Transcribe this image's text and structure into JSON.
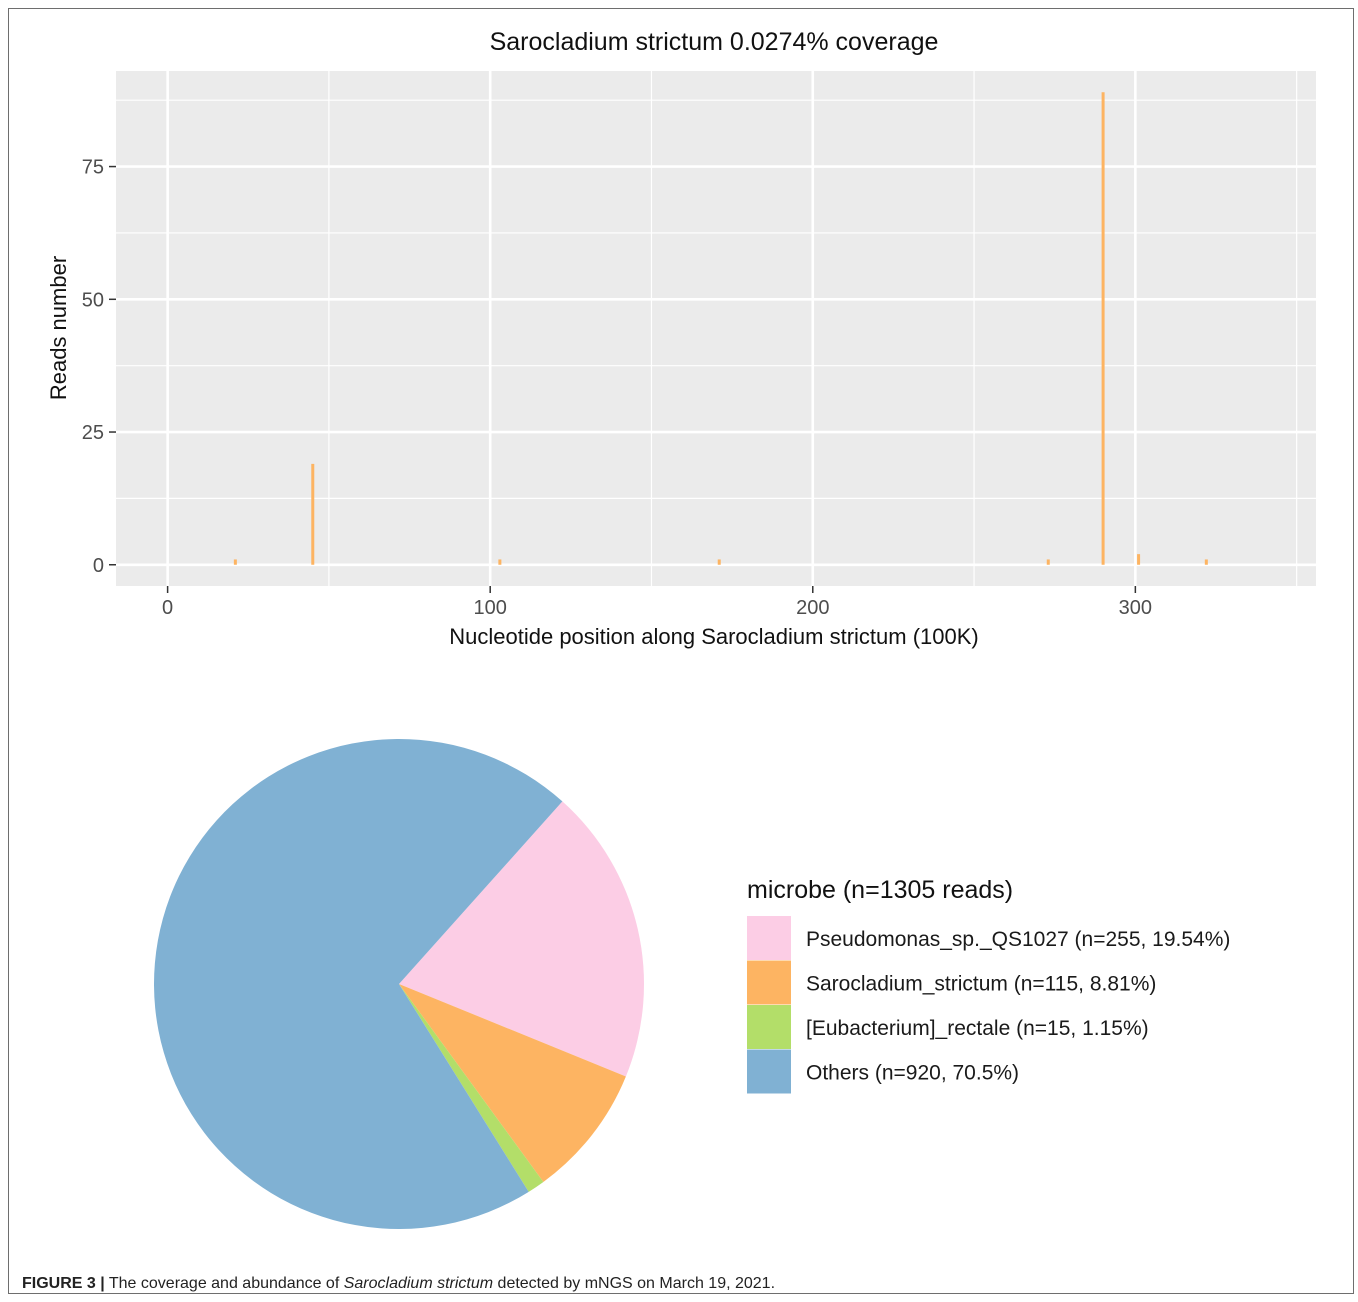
{
  "coverage_chart": {
    "title": "Sarocladium strictum 0.0274% coverage",
    "xlabel": "Nucleotide position along Sarocladium strictum (100K)",
    "ylabel": "Reads number"
  },
  "pie_chart": {
    "legend_title": "microbe (n=1305 reads)"
  },
  "caption": {
    "label": "FIGURE 3 |",
    "text_before": " The coverage and abundance of ",
    "species": "Sarocladium strictum",
    "text_after": " detected by mNGS on March 19, 2021."
  },
  "chart_data": [
    {
      "type": "bar",
      "title": "Sarocladium strictum 0.0274% coverage",
      "xlabel": "Nucleotide position along Sarocladium strictum (100K)",
      "ylabel": "Reads number",
      "xlim": [
        -16,
        356
      ],
      "ylim": [
        -4,
        93
      ],
      "x_ticks": [
        0,
        100,
        200,
        300
      ],
      "x_tick_labels": [
        "0",
        "100",
        "200",
        "300"
      ],
      "y_ticks": [
        0,
        25,
        50,
        75
      ],
      "y_tick_labels": [
        "0",
        "25",
        "50",
        "75"
      ],
      "grid": true,
      "panel_background": "#ebebeb",
      "bar_color": "#fdb462",
      "x": [
        21,
        45,
        103,
        171,
        273,
        290,
        301,
        322
      ],
      "values": [
        1,
        19,
        1,
        1,
        1,
        89,
        2,
        1
      ]
    },
    {
      "type": "pie",
      "title": "",
      "legend_title": "microbe (n=1305 reads)",
      "legend_position": "right",
      "slices": [
        {
          "label": "Pseudomonas_sp._QS1027 (n=255, 19.54%)",
          "value": 255,
          "color": "#fccde5"
        },
        {
          "label": "Sarocladium_strictum (n=115, 8.81%)",
          "value": 115,
          "color": "#fdb462"
        },
        {
          "label": "[Eubacterium]_rectale (n=15, 1.15%)",
          "value": 15,
          "color": "#b3de69"
        },
        {
          "label": "Others (n=920, 70.5%)",
          "value": 920,
          "color": "#80b1d3"
        }
      ]
    }
  ]
}
